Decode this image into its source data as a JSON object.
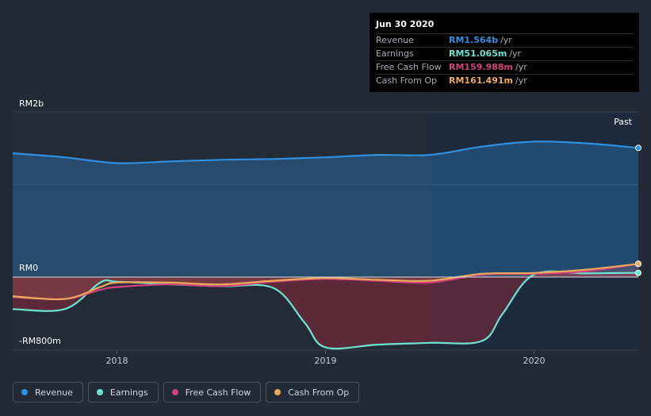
{
  "tooltip": {
    "date": "Jun 30 2020",
    "rows": [
      {
        "label": "Revenue",
        "value": "RM1.564b",
        "unit": "/yr",
        "color": "#2f8fe0"
      },
      {
        "label": "Earnings",
        "value": "RM51.065m",
        "unit": "/yr",
        "color": "#6fe3d2"
      },
      {
        "label": "Free Cash Flow",
        "value": "RM159.988m",
        "unit": "/yr",
        "color": "#d2417b"
      },
      {
        "label": "Cash From Op",
        "value": "RM161.491m",
        "unit": "/yr",
        "color": "#e8a95a"
      }
    ]
  },
  "past_label": "Past",
  "legend": [
    {
      "label": "Revenue",
      "color": "#2f8fe0"
    },
    {
      "label": "Earnings",
      "color": "#6fe3d2"
    },
    {
      "label": "Free Cash Flow",
      "color": "#d2417b"
    },
    {
      "label": "Cash From Op",
      "color": "#e8a95a"
    }
  ],
  "chart_data": {
    "type": "area",
    "y_tick_labels": [
      "RM2b",
      "RM0",
      "-RM800m"
    ],
    "y_ticks": [
      2000,
      0,
      -800
    ],
    "ylim": [
      -800,
      2000
    ],
    "x_tick_labels": [
      "2018",
      "2019",
      "2020"
    ],
    "x_ticks": [
      2018.0,
      2019.0,
      2020.0
    ],
    "xlim": [
      2017.5,
      2020.5
    ],
    "past_region_start": 2019.5,
    "grid": true,
    "legend_position": "bottom-left",
    "series": [
      {
        "name": "Revenue",
        "color": "#2f8fe0",
        "x": [
          2017.5,
          2017.75,
          2018.0,
          2018.25,
          2018.5,
          2018.75,
          2019.0,
          2019.25,
          2019.5,
          2019.75,
          2020.0,
          2020.25,
          2020.5
        ],
        "values": [
          1500,
          1450,
          1380,
          1400,
          1420,
          1430,
          1450,
          1480,
          1480,
          1580,
          1640,
          1620,
          1564
        ]
      },
      {
        "name": "Earnings",
        "color": "#6fe3d2",
        "x": [
          2017.5,
          2017.75,
          2017.92,
          2018.0,
          2018.25,
          2018.5,
          2018.75,
          2018.9,
          2019.0,
          2019.25,
          2019.5,
          2019.75,
          2019.85,
          2020.0,
          2020.25,
          2020.5
        ],
        "values": [
          -350,
          -350,
          -60,
          -50,
          -80,
          -100,
          -120,
          -500,
          -770,
          -740,
          -720,
          -700,
          -400,
          30,
          45,
          51
        ]
      },
      {
        "name": "Free Cash Flow",
        "color": "#d2417b",
        "x": [
          2017.5,
          2017.75,
          2017.92,
          2018.0,
          2018.25,
          2018.5,
          2018.75,
          2019.0,
          2019.25,
          2019.5,
          2019.75,
          2020.0,
          2020.25,
          2020.5
        ],
        "values": [
          -220,
          -240,
          -140,
          -110,
          -80,
          -100,
          -50,
          -20,
          -40,
          -60,
          30,
          40,
          70,
          160
        ]
      },
      {
        "name": "Cash From Op",
        "color": "#e8a95a",
        "x": [
          2017.5,
          2017.75,
          2017.92,
          2018.0,
          2018.25,
          2018.5,
          2018.75,
          2019.0,
          2019.25,
          2019.5,
          2019.75,
          2020.0,
          2020.25,
          2020.5
        ],
        "values": [
          -210,
          -240,
          -110,
          -60,
          -60,
          -80,
          -40,
          -10,
          -30,
          -40,
          40,
          50,
          90,
          161
        ]
      }
    ]
  }
}
